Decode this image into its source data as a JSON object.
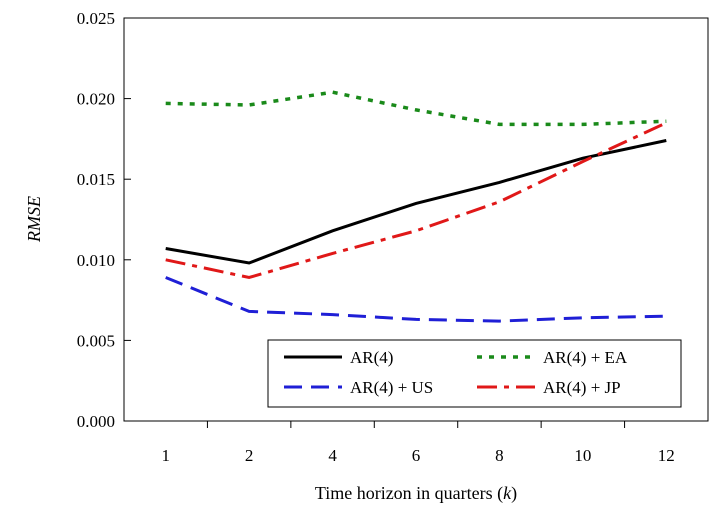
{
  "chart_data": {
    "type": "line",
    "categories": [
      "1",
      "2",
      "4",
      "6",
      "8",
      "10",
      "12"
    ],
    "xlabel_prefix": "Time horizon in quarters (",
    "xlabel_var": "k",
    "xlabel_suffix": ")",
    "ylabel": "RMSE",
    "ylim": [
      0,
      0.025
    ],
    "yticks": [
      "0.000",
      "0.005",
      "0.010",
      "0.015",
      "0.020",
      "0.025"
    ],
    "grid": false,
    "legend_position": "bottom-right",
    "series": [
      {
        "name": "AR(4)",
        "color": "#000000",
        "dash": "solid",
        "values": [
          0.0107,
          0.0098,
          0.0118,
          0.0135,
          0.0148,
          0.0163,
          0.0174
        ]
      },
      {
        "name": "AR(4) + EA",
        "color": "#1a8a1a",
        "dash": "dotted",
        "values": [
          0.0197,
          0.0196,
          0.0204,
          0.0193,
          0.0184,
          0.0184,
          0.0186
        ]
      },
      {
        "name": "AR(4) + US",
        "color": "#1f1fd6",
        "dash": "dashed",
        "values": [
          0.0089,
          0.0068,
          0.0066,
          0.0063,
          0.0062,
          0.0064,
          0.0065
        ]
      },
      {
        "name": "AR(4) + JP",
        "color": "#e01818",
        "dash": "dashdot",
        "values": [
          0.01,
          0.0089,
          0.0104,
          0.0118,
          0.0136,
          0.0161,
          0.0185
        ]
      }
    ]
  }
}
